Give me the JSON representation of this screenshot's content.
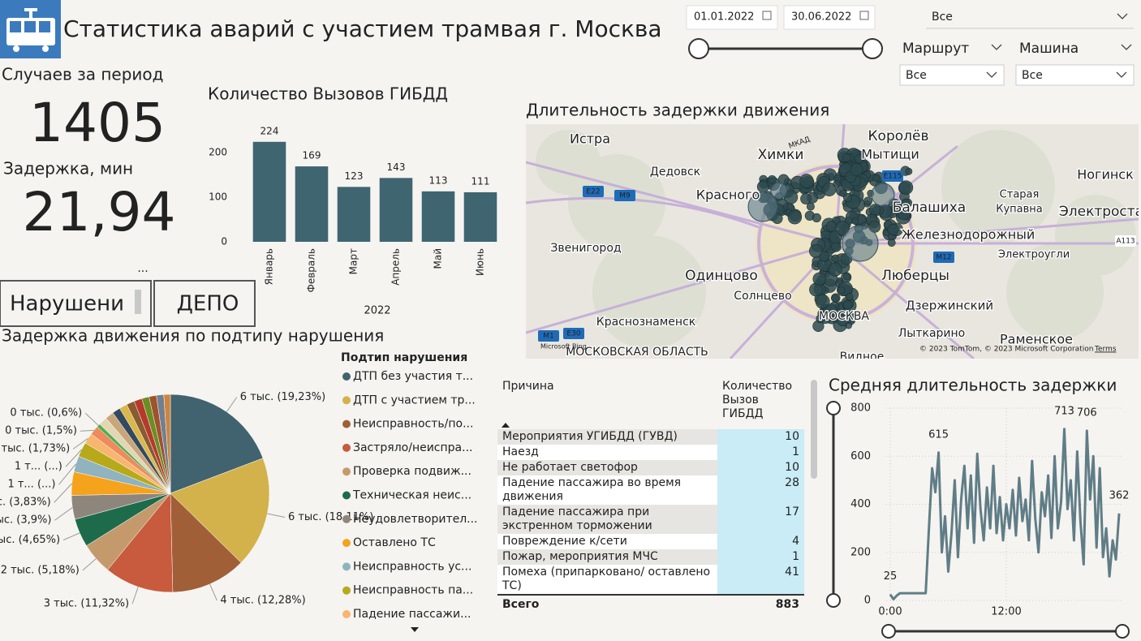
{
  "header": {
    "title": "Статистика аварий с участием трамвая г. Москва"
  },
  "filters": {
    "date_from": "01.01.2022",
    "date_to": "30.06.2022",
    "top_select": "Все",
    "route_label": "Маршрут",
    "route_value": "Все",
    "car_label": "Машина",
    "car_value": "Все"
  },
  "kpis": {
    "cases_label": "Случаев за период",
    "cases_value": "1405",
    "delay_label": "Задержка, мин",
    "delay_value": "21,94"
  },
  "more_options": "...",
  "buttons": [
    "Нарушени",
    "ДЕПО"
  ],
  "map": {
    "title": "Длительность задержки движения",
    "places": [
      "Истра",
      "Химки",
      "Королёв",
      "Мытищи",
      "Дедовск",
      "Красного",
      "Балашиха",
      "Ногинск",
      "Старая",
      "Купавна",
      "Электроста",
      "Железнодорожный",
      "Звенигород",
      "Электроугли",
      "Одинцово",
      "Люберцы",
      "Солнцево",
      "МОСКВА",
      "Дзержинский",
      "Краснознаменск",
      "Лыткарино",
      "Раменское",
      "МОСКОВСКАЯ ОБЛАСТЬ",
      "Видное"
    ],
    "roads": [
      "МКАД",
      "E22",
      "M9",
      "E115",
      "M12",
      "A113",
      "M1",
      "E30"
    ],
    "attribution": "© 2023 TomTom, © 2023 Microsoft Corporation",
    "terms": "Terms",
    "logo": "Microsoft Bing"
  },
  "table": {
    "columns": [
      "Причина",
      "Количество Вызов ГИБДД"
    ],
    "rows": [
      [
        "Мероприятия УГИБДД (ГУВД)",
        "10"
      ],
      [
        "Наезд",
        "1"
      ],
      [
        "Не работает светофор",
        "10"
      ],
      [
        "Падение пассажира во время движения",
        "28"
      ],
      [
        "Падение пассажира при экстренном торможении",
        "17"
      ],
      [
        "Повреждение к/сети",
        "4"
      ],
      [
        "Пожар, мероприятия МЧС",
        "1"
      ],
      [
        "Помеха (припарковано/ оставлено ТС)",
        "41"
      ]
    ],
    "total_label": "Всего",
    "total_value": "883"
  },
  "chart_data": [
    {
      "type": "bar",
      "title": "Количество Вызовов ГИБДД",
      "x_label": "2022",
      "categories": [
        "Январь",
        "Февраль",
        "Март",
        "Апрель",
        "Май",
        "Июнь"
      ],
      "values": [
        224,
        169,
        123,
        143,
        113,
        111
      ],
      "color": "#3f6571",
      "ylim": [
        0,
        250
      ],
      "yticks": [
        0,
        100,
        200
      ]
    },
    {
      "type": "pie",
      "title": "Задержка движения по подтипу нарушения",
      "legend_title": "Подтип нарушения",
      "categories": [
        "ДТП без участия т...",
        "ДТП с участием тр...",
        "Неисправность/по...",
        "Застряло/неиспра...",
        "Проверка подвиж...",
        "Техническая неис...",
        "Неудовлетворител...",
        "Оставлено ТС",
        "Неисправность ус...",
        "Неисправность па...",
        "Падение пассажи...",
        null,
        null,
        null,
        null,
        null,
        null,
        null,
        null,
        null,
        null,
        null,
        null
      ],
      "values": [
        19.23,
        18.11,
        12.28,
        11.32,
        5.18,
        4.65,
        3.9,
        3.83,
        2.6,
        2.4,
        1.73,
        1.5,
        0.6,
        1.4,
        1.4,
        1.3,
        1.3,
        1.3,
        1.3,
        1.2,
        1.2,
        1.2,
        1.07
      ],
      "value_labels": [
        "6 тыс. (19,23%)",
        "6 тыс. (18,11%)",
        "4 тыс. (12,28%)",
        "3 тыс. (11,32%)",
        "2 тыс. (5,18%)",
        "1 тыс. (4,65%)",
        "1 тыс. (3,9%)",
        "1 тыс. (3,83%)",
        "1 т... (...)",
        "1 т... (...)",
        "1 тыс. (1,73%)",
        "0 тыс. (1,5%)",
        "0 тыс. (0,6%)",
        null,
        null,
        null,
        null,
        null,
        null,
        null,
        null,
        null,
        null
      ],
      "colors": [
        "#41636f",
        "#d3b24c",
        "#a15f38",
        "#c85a3d",
        "#c49a6c",
        "#1e6b4c",
        "#8e867c",
        "#f5a31c",
        "#8fb3bf",
        "#b7a91a",
        "#f7b56e",
        "#ef8a5c",
        "#4caf50",
        "#e3d6b4",
        "#c9a67a",
        "#34495e",
        "#d8b84a",
        "#8a5a30",
        "#b53a2a",
        "#6b8e23",
        "#a0522d",
        "#708090",
        "#cd853f"
      ]
    },
    {
      "type": "line",
      "title": "Средняя длительность задержки",
      "color": "#607d87",
      "x": [
        0,
        20,
        40,
        60,
        80,
        100,
        120,
        140,
        160,
        180,
        200,
        220,
        240,
        260,
        280,
        300,
        320,
        340,
        360,
        380,
        400,
        420,
        440,
        460,
        480,
        500,
        520,
        540,
        560,
        580,
        600,
        620,
        640,
        660,
        680,
        700,
        720,
        740,
        760,
        780,
        800,
        820,
        840,
        860,
        880,
        900,
        920,
        940,
        960,
        980,
        1000,
        1020,
        1040,
        1060,
        1080,
        1100,
        1120,
        1140,
        1160,
        1180,
        1200,
        1220,
        1240,
        1260,
        1280,
        1300,
        1320,
        1340,
        1360,
        1380,
        1400,
        1420
      ],
      "values": [
        25,
        5,
        20,
        30,
        30,
        30,
        30,
        30,
        30,
        30,
        30,
        30,
        300,
        550,
        450,
        615,
        200,
        350,
        120,
        280,
        500,
        180,
        420,
        560,
        300,
        520,
        240,
        610,
        380,
        250,
        470,
        300,
        560,
        280,
        430,
        250,
        400,
        300,
        460,
        270,
        510,
        330,
        420,
        250,
        580,
        340,
        200,
        450,
        350,
        520,
        260,
        600,
        300,
        410,
        713,
        380,
        500,
        250,
        620,
        330,
        150,
        706,
        420,
        600,
        220,
        550,
        180,
        300,
        100,
        250,
        170,
        362
      ],
      "value_labels": [
        "25",
        null,
        null,
        null,
        null,
        null,
        null,
        null,
        null,
        null,
        null,
        null,
        null,
        null,
        null,
        "615",
        null,
        null,
        null,
        null,
        null,
        null,
        null,
        null,
        null,
        null,
        null,
        null,
        null,
        null,
        null,
        null,
        null,
        null,
        null,
        null,
        null,
        null,
        null,
        null,
        null,
        null,
        null,
        null,
        null,
        null,
        null,
        null,
        null,
        null,
        null,
        null,
        null,
        null,
        "713",
        null,
        null,
        null,
        null,
        null,
        null,
        "706",
        null,
        null,
        null,
        null,
        null,
        null,
        null,
        null,
        null,
        "362"
      ],
      "xlim": [
        0,
        1440
      ],
      "xticks": [
        {
          "value": 0,
          "label": "0:00"
        },
        {
          "value": 720,
          "label": "12:00"
        }
      ],
      "ylim": [
        0,
        800
      ],
      "yticks": [
        0,
        200,
        400,
        600,
        800
      ],
      "grid": true
    }
  ]
}
